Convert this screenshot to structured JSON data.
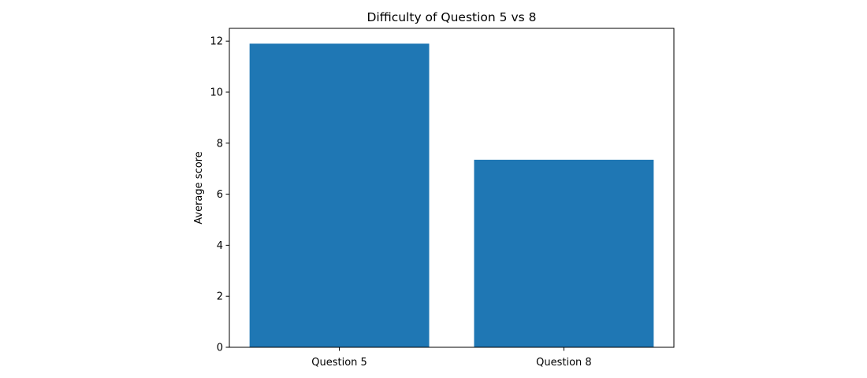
{
  "chart_data": {
    "type": "bar",
    "title": "Difficulty of Question 5 vs 8",
    "xlabel": "",
    "ylabel": "Average score",
    "categories": [
      "Question 5",
      "Question 8"
    ],
    "values": [
      11.9,
      7.35
    ],
    "ylim": [
      0,
      12.5
    ],
    "yticks": [
      0,
      2,
      4,
      6,
      8,
      10,
      12
    ],
    "ytick_labels": [
      "0",
      "2",
      "4",
      "6",
      "8",
      "10",
      "12"
    ],
    "grid": false,
    "legend": "none",
    "bar_color": "#1f77b4"
  }
}
